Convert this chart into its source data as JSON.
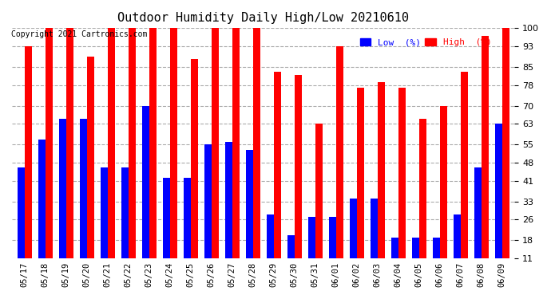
{
  "title": "Outdoor Humidity Daily High/Low 20210610",
  "copyright": "Copyright 2021 Cartronics.com",
  "dates": [
    "05/17",
    "05/18",
    "05/19",
    "05/20",
    "05/21",
    "05/22",
    "05/23",
    "05/24",
    "05/25",
    "05/26",
    "05/27",
    "05/28",
    "05/29",
    "05/30",
    "05/31",
    "06/01",
    "06/02",
    "06/03",
    "06/04",
    "06/05",
    "06/06",
    "06/07",
    "06/08",
    "06/09"
  ],
  "high": [
    93,
    100,
    100,
    89,
    100,
    100,
    100,
    100,
    88,
    100,
    100,
    100,
    83,
    82,
    63,
    93,
    77,
    79,
    77,
    65,
    70,
    83,
    97,
    100
  ],
  "low": [
    46,
    57,
    65,
    65,
    46,
    46,
    70,
    42,
    42,
    55,
    56,
    53,
    28,
    20,
    27,
    27,
    34,
    34,
    19,
    19,
    19,
    28,
    46,
    63
  ],
  "high_color": "#ff0000",
  "low_color": "#0000ff",
  "bg_color": "#ffffff",
  "plot_bg_color": "#ffffff",
  "grid_color": "#aaaaaa",
  "ylim": [
    11,
    100
  ],
  "yticks": [
    11,
    18,
    26,
    33,
    41,
    48,
    55,
    63,
    70,
    78,
    85,
    93,
    100
  ],
  "bar_width": 0.35,
  "legend_low_label": "Low  (%)",
  "legend_high_label": "High  (%)"
}
